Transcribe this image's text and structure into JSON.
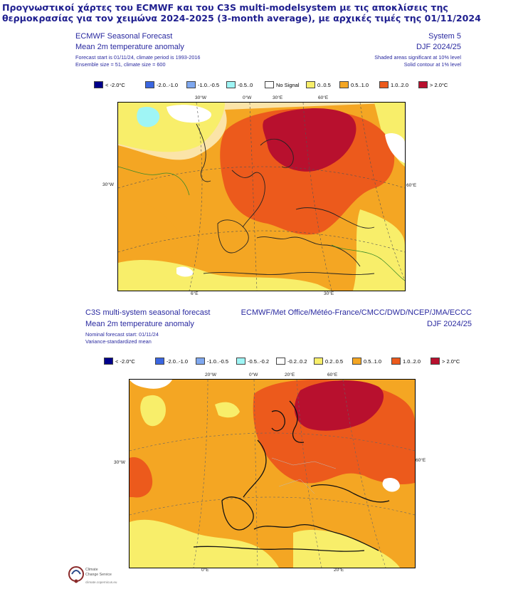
{
  "title": "Προγνωστικοί χάρτες του ECMWF και του C3S multi-modelsystem με τις αποκλίσεις της θερμοκρασίας για τον χειμώνα 2024-2025 (3-month average), με αρχικές τιμές της 01/11/2024",
  "panel1": {
    "header_left_1": "ECMWF Seasonal Forecast",
    "header_left_2": "Mean 2m temperature anomaly",
    "header_left_3": "Forecast start is 01/11/24, climate period is 1993-2016",
    "header_left_4": "Ensemble size = 51, climate size = 600",
    "header_right_1": "System 5",
    "header_right_2": "DJF 2024/25",
    "header_right_3": "Shaded areas significant at 10% level",
    "header_right_4": "Solid contour at 1% level",
    "legend": [
      {
        "label": "< -2.0°C",
        "color": "#00008b"
      },
      {
        "label": "-2.0..-1.0",
        "color": "#3a66e0"
      },
      {
        "label": "-1.0..-0.5",
        "color": "#7fa8ef"
      },
      {
        "label": "-0.5..0",
        "color": "#9ff5f5"
      },
      {
        "label": "No Signal",
        "color": "#ffffff"
      },
      {
        "label": "0..0.5",
        "color": "#f8ee6a"
      },
      {
        "label": "0.5..1.0",
        "color": "#f4a623"
      },
      {
        "label": "1.0..2.0",
        "color": "#ec5a1c"
      },
      {
        "label": "> 2.0°C",
        "color": "#b8102e"
      }
    ],
    "coords": {
      "top_30w": "30°W",
      "top_0w": "0°W",
      "top_30e": "30°E",
      "top_60e": "60°E",
      "left_30w": "30°W",
      "right_60e": "60°E",
      "bottom_6e": "6°E",
      "bottom_30e": "30°E"
    }
  },
  "panel2": {
    "header_left_1": "C3S multi-system seasonal forecast",
    "header_left_2": "Mean 2m temperature anomaly",
    "header_left_3": "Nominal forecast start: 01/11/24",
    "header_left_4": "Variance-standardized mean",
    "header_right_1": "ECMWF/Met Office/Météo-France/CMCC/DWD/NCEP/JMA/ECCC",
    "header_right_2": "DJF 2024/25",
    "legend": [
      {
        "label": "< -2.0°C",
        "color": "#00008b"
      },
      {
        "label": "-2.0..-1.0",
        "color": "#3a66e0"
      },
      {
        "label": "-1.0..-0.5",
        "color": "#7fa8ef"
      },
      {
        "label": "-0.5..-0.2",
        "color": "#9ff5f5"
      },
      {
        "label": "-0.2..0.2",
        "color": "#ffffff"
      },
      {
        "label": "0.2..0.5",
        "color": "#f8ee6a"
      },
      {
        "label": "0.5..1.0",
        "color": "#f4a623"
      },
      {
        "label": "1.0..2.0",
        "color": "#ec5a1c"
      },
      {
        "label": "> 2.0°C",
        "color": "#b8102e"
      }
    ],
    "coords": {
      "top_20w": "20°W",
      "top_0w": "0°W",
      "top_20e": "20°E",
      "top_60e": "60°E",
      "left_30w": "30°W",
      "right_60e": "60°E",
      "bottom_0e": "0°E",
      "bottom_20e": "20°E"
    }
  },
  "footer": {
    "logo_line1": "Climate",
    "logo_line2": "Change Service",
    "logo_url": "climate.copernicus.eu"
  }
}
